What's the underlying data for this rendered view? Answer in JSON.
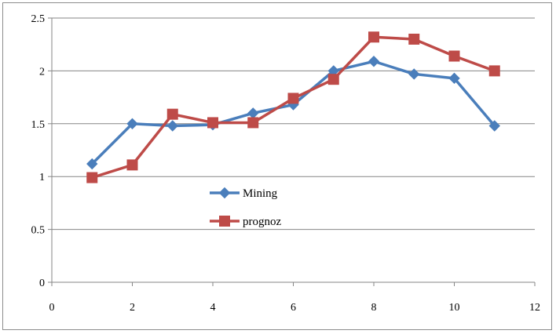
{
  "chart_data": {
    "type": "line",
    "title": "",
    "xlabel": "",
    "ylabel": "",
    "xlim": [
      0,
      12
    ],
    "ylim": [
      0,
      2.5
    ],
    "x_ticks": [
      0,
      2,
      4,
      6,
      8,
      10,
      12
    ],
    "y_ticks": [
      0,
      0.5,
      1,
      1.5,
      2,
      2.5
    ],
    "x_tick_labels": [
      "0",
      "2",
      "4",
      "6",
      "8",
      "10",
      "12"
    ],
    "y_tick_labels": [
      "0",
      "0.5",
      "1",
      "1.5",
      "2",
      "2.5"
    ],
    "grid": "horizontal",
    "legend_position": "inside-center-left",
    "series": [
      {
        "name": "Mining",
        "marker": "diamond",
        "color": "#4a7ebb",
        "x": [
          1,
          2,
          3,
          4,
          5,
          6,
          7,
          8,
          9,
          10,
          11
        ],
        "y": [
          1.12,
          1.5,
          1.48,
          1.49,
          1.6,
          1.68,
          2.0,
          2.09,
          1.97,
          1.93,
          1.48
        ]
      },
      {
        "name": "prognoz",
        "marker": "square",
        "color": "#be4b48",
        "x": [
          1,
          2,
          3,
          4,
          5,
          6,
          7,
          8,
          9,
          10,
          11
        ],
        "y": [
          0.99,
          1.11,
          1.59,
          1.51,
          1.51,
          1.74,
          1.92,
          2.32,
          2.3,
          2.14,
          2.0
        ]
      }
    ]
  }
}
